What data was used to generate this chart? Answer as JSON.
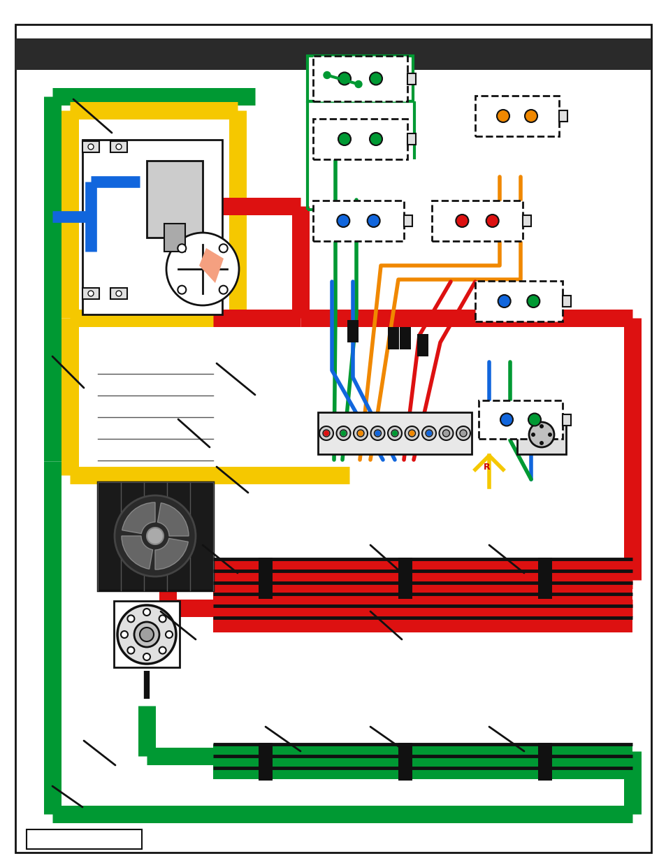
{
  "bg_color": "#ffffff",
  "green": "#009933",
  "yellow": "#f5c800",
  "red": "#dd1111",
  "blue": "#1166dd",
  "orange": "#f08800",
  "peach": "#f5a080",
  "black": "#111111",
  "gray_dark": "#2a2a2a",
  "gray_med": "#888888",
  "gray_light": "#e0e0e0",
  "line_thick": 18,
  "line_med": 12,
  "line_thin": 4,
  "fig_w": 9.54,
  "fig_h": 12.35,
  "dpi": 100
}
